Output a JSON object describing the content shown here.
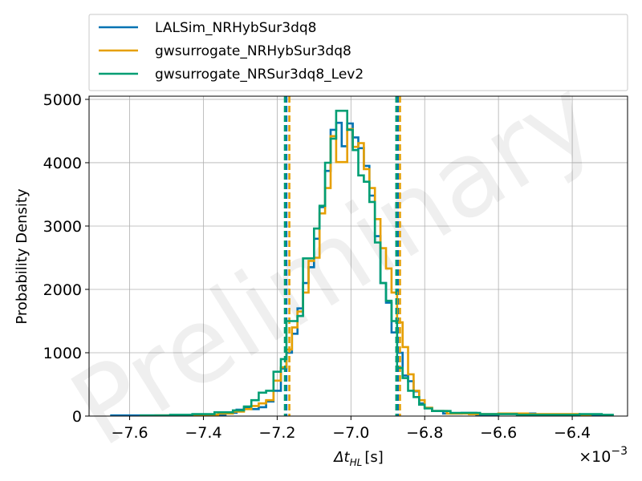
{
  "chart_data": {
    "type": "histogram",
    "watermark": "Preliminary",
    "xlabel": "Δt_HL [s]",
    "xlabel_main": "Δt",
    "xlabel_sub": "HL",
    "xlabel_unit": "[s]",
    "ylabel": "Probability Density",
    "x_scale_label": "×10⁻³",
    "x_scale_base": "×10",
    "x_scale_exp": "−3",
    "xlim": [
      -7.71,
      -6.25
    ],
    "ylim": [
      0,
      5050
    ],
    "grid": true,
    "legend_position": "top (above plot)",
    "x_ticks": [
      -7.6,
      -7.4,
      -7.2,
      -7.0,
      -6.8,
      -6.6,
      -6.4
    ],
    "x_tick_labels": [
      "−7.6",
      "−7.4",
      "−7.2",
      "−7.0",
      "−6.8",
      "−6.6",
      "−6.4"
    ],
    "y_ticks": [
      0,
      1000,
      2000,
      3000,
      4000,
      5000
    ],
    "y_tick_labels": [
      "0",
      "1000",
      "2000",
      "3000",
      "4000",
      "5000"
    ],
    "series": [
      {
        "name": "LALSim_NRHybSur3dq8",
        "color": "#0072B2",
        "vlines": [
          -7.175,
          -6.873
        ],
        "bins": [
          [
            -7.65,
            10
          ],
          [
            -7.57,
            10
          ],
          [
            -7.49,
            0
          ],
          [
            -7.44,
            10
          ],
          [
            -7.38,
            20
          ],
          [
            -7.34,
            50
          ],
          [
            -7.31,
            100
          ],
          [
            -7.29,
            130
          ],
          [
            -7.27,
            110
          ],
          [
            -7.25,
            140
          ],
          [
            -7.23,
            230
          ],
          [
            -7.21,
            400
          ],
          [
            -7.19,
            750
          ],
          [
            -7.175,
            1000
          ],
          [
            -7.16,
            1300
          ],
          [
            -7.145,
            1700
          ],
          [
            -7.13,
            2100
          ],
          [
            -7.115,
            2350
          ],
          [
            -7.1,
            2800
          ],
          [
            -7.085,
            3300
          ],
          [
            -7.07,
            3870
          ],
          [
            -7.055,
            4520
          ],
          [
            -7.04,
            4630
          ],
          [
            -7.025,
            4260
          ],
          [
            -7.01,
            4620
          ],
          [
            -6.995,
            4400
          ],
          [
            -6.98,
            4230
          ],
          [
            -6.965,
            3950
          ],
          [
            -6.95,
            3480
          ],
          [
            -6.935,
            2840
          ],
          [
            -6.92,
            2100
          ],
          [
            -6.905,
            1790
          ],
          [
            -6.89,
            1320
          ],
          [
            -6.875,
            1000
          ],
          [
            -6.86,
            640
          ],
          [
            -6.845,
            550
          ],
          [
            -6.83,
            390
          ],
          [
            -6.815,
            200
          ],
          [
            -6.8,
            130
          ],
          [
            -6.78,
            80
          ],
          [
            -6.75,
            40
          ],
          [
            -6.7,
            50
          ],
          [
            -6.66,
            10
          ],
          [
            -6.6,
            40
          ],
          [
            -6.5,
            20
          ],
          [
            -6.4,
            20
          ],
          [
            -6.35,
            10
          ]
        ]
      },
      {
        "name": "gwsurrogate_NRHybSur3dq8",
        "color": "#E69F00",
        "vlines": [
          -7.167,
          -6.867
        ],
        "bins": [
          [
            -7.53,
            10
          ],
          [
            -7.46,
            10
          ],
          [
            -7.4,
            20
          ],
          [
            -7.36,
            40
          ],
          [
            -7.32,
            70
          ],
          [
            -7.29,
            110
          ],
          [
            -7.27,
            160
          ],
          [
            -7.25,
            200
          ],
          [
            -7.23,
            250
          ],
          [
            -7.21,
            560
          ],
          [
            -7.19,
            770
          ],
          [
            -7.175,
            1050
          ],
          [
            -7.16,
            1400
          ],
          [
            -7.145,
            1650
          ],
          [
            -7.13,
            1950
          ],
          [
            -7.115,
            2450
          ],
          [
            -7.1,
            2500
          ],
          [
            -7.085,
            3200
          ],
          [
            -7.07,
            3600
          ],
          [
            -7.055,
            4420
          ],
          [
            -7.04,
            4010
          ],
          [
            -7.025,
            4010
          ],
          [
            -7.01,
            4530
          ],
          [
            -6.995,
            4250
          ],
          [
            -6.98,
            4310
          ],
          [
            -6.965,
            3900
          ],
          [
            -6.95,
            3600
          ],
          [
            -6.935,
            3110
          ],
          [
            -6.92,
            2650
          ],
          [
            -6.905,
            2330
          ],
          [
            -6.89,
            1950
          ],
          [
            -6.875,
            1480
          ],
          [
            -6.86,
            1090
          ],
          [
            -6.845,
            660
          ],
          [
            -6.83,
            400
          ],
          [
            -6.815,
            250
          ],
          [
            -6.8,
            130
          ],
          [
            -6.78,
            80
          ],
          [
            -6.74,
            40
          ],
          [
            -6.68,
            30
          ],
          [
            -6.6,
            40
          ],
          [
            -6.52,
            30
          ],
          [
            -6.45,
            30
          ],
          [
            -6.38,
            20
          ]
        ]
      },
      {
        "name": "gwsurrogate_NRSur3dq8_Lev2",
        "color": "#009E73",
        "vlines": [
          -7.179,
          -6.877
        ],
        "bins": [
          [
            -7.57,
            10
          ],
          [
            -7.49,
            20
          ],
          [
            -7.43,
            30
          ],
          [
            -7.37,
            60
          ],
          [
            -7.32,
            90
          ],
          [
            -7.29,
            150
          ],
          [
            -7.27,
            250
          ],
          [
            -7.25,
            370
          ],
          [
            -7.23,
            400
          ],
          [
            -7.21,
            700
          ],
          [
            -7.19,
            900
          ],
          [
            -7.175,
            1500
          ],
          [
            -7.16,
            1500
          ],
          [
            -7.145,
            1580
          ],
          [
            -7.13,
            2490
          ],
          [
            -7.115,
            2490
          ],
          [
            -7.1,
            2960
          ],
          [
            -7.085,
            3320
          ],
          [
            -7.07,
            4000
          ],
          [
            -7.055,
            4380
          ],
          [
            -7.04,
            4820
          ],
          [
            -7.025,
            4820
          ],
          [
            -7.01,
            4520
          ],
          [
            -6.995,
            4200
          ],
          [
            -6.98,
            3800
          ],
          [
            -6.965,
            3700
          ],
          [
            -6.95,
            3380
          ],
          [
            -6.935,
            2740
          ],
          [
            -6.92,
            2100
          ],
          [
            -6.905,
            1820
          ],
          [
            -6.89,
            1500
          ],
          [
            -6.875,
            760
          ],
          [
            -6.86,
            600
          ],
          [
            -6.845,
            400
          ],
          [
            -6.83,
            300
          ],
          [
            -6.815,
            180
          ],
          [
            -6.8,
            120
          ],
          [
            -6.78,
            80
          ],
          [
            -6.73,
            50
          ],
          [
            -6.65,
            30
          ],
          [
            -6.55,
            20
          ],
          [
            -6.45,
            20
          ],
          [
            -6.38,
            30
          ],
          [
            -6.32,
            20
          ]
        ]
      }
    ]
  }
}
